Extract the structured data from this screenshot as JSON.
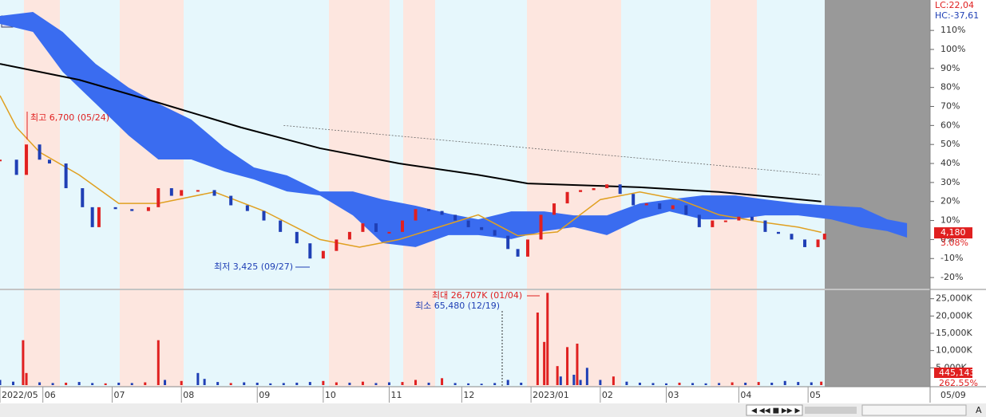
{
  "chart_data": {
    "type": "stock",
    "xlim": [
      0,
      282
    ],
    "xticks": [
      {
        "value": 0,
        "label": "2022/05"
      },
      {
        "value": 13,
        "label": "06"
      },
      {
        "value": 34,
        "label": "07"
      },
      {
        "value": 55,
        "label": "08"
      },
      {
        "value": 78,
        "label": "09"
      },
      {
        "value": 98,
        "label": "10"
      },
      {
        "value": 118,
        "label": "11"
      },
      {
        "value": 140,
        "label": "12"
      },
      {
        "value": 161,
        "label": "2023/01"
      },
      {
        "value": 182,
        "label": "02"
      },
      {
        "value": 202,
        "label": "03"
      },
      {
        "value": 224,
        "label": "04"
      },
      {
        "value": 245,
        "label": "05"
      }
    ],
    "current_date": "05/09",
    "legend_lc": "LC:22,04",
    "legend_hc": "HC:-37,61",
    "price_panel": {
      "ylim": [
        -25,
        126
      ],
      "yticks": [
        {
          "value": 110,
          "label": "110%"
        },
        {
          "value": 100,
          "label": "100%"
        },
        {
          "value": 90,
          "label": "90%"
        },
        {
          "value": 80,
          "label": "80%"
        },
        {
          "value": 70,
          "label": "70%"
        },
        {
          "value": 60,
          "label": "60%"
        },
        {
          "value": 50,
          "label": "50%"
        },
        {
          "value": 40,
          "label": "40%"
        },
        {
          "value": 30,
          "label": "30%"
        },
        {
          "value": 20,
          "label": "20%"
        },
        {
          "value": 10,
          "label": "10%"
        },
        {
          "value": 0,
          "label": "0%"
        },
        {
          "value": -10,
          "label": "-10%"
        },
        {
          "value": -20,
          "label": "-20%"
        }
      ],
      "close": {
        "up_color": "#e02020",
        "down_color": "#1f3fb5",
        "x": [
          0,
          5,
          8,
          12,
          15,
          20,
          25,
          28,
          30,
          35,
          40,
          45,
          48,
          52,
          55,
          60,
          65,
          70,
          75,
          80,
          85,
          90,
          94,
          98,
          102,
          106,
          110,
          114,
          118,
          122,
          126,
          130,
          134,
          138,
          142,
          146,
          150,
          154,
          157,
          160,
          164,
          168,
          172,
          176,
          180,
          184,
          188,
          192,
          196,
          200,
          204,
          208,
          212,
          216,
          220,
          224,
          228,
          232,
          236,
          240,
          244,
          248,
          250
        ],
        "values": [
          42,
          34,
          50,
          42,
          40,
          27,
          17,
          6.5,
          17,
          16,
          15,
          17,
          27,
          23,
          26,
          26,
          23,
          18,
          15,
          10,
          4,
          -2,
          -10,
          -6,
          0,
          4,
          8.5,
          4,
          4,
          10,
          16,
          15,
          13,
          10,
          6.5,
          5,
          2,
          -5,
          -9,
          0,
          13,
          19,
          25,
          26,
          27,
          29,
          24,
          18,
          19,
          16,
          18,
          13,
          6.5,
          10,
          10,
          12,
          10,
          4,
          3,
          0,
          -4,
          0,
          3.08
        ]
      },
      "ma_long": {
        "color": "#000000",
        "x": [
          0,
          24,
          48,
          73,
          97,
          121,
          145,
          160,
          194,
          218,
          249
        ],
        "values": [
          92.4,
          84,
          72,
          59,
          48,
          40,
          34,
          29.5,
          27.5,
          25,
          20
        ]
      },
      "trend_line": {
        "color": "#666666",
        "x": [
          86,
          249
        ],
        "values": [
          60,
          34
        ]
      },
      "ma_mid": {
        "color": "#e0a020",
        "x": [
          0,
          5,
          12,
          24,
          36,
          48,
          65,
          80,
          97,
          109,
          121,
          133,
          145,
          157,
          169,
          182,
          194,
          206,
          218,
          230,
          242,
          249
        ],
        "values": [
          75.7,
          59,
          46,
          34,
          19,
          19,
          25,
          15,
          0,
          -4,
          0,
          6.5,
          13,
          2,
          4,
          21,
          25,
          21,
          13,
          9.4,
          6.5,
          3.8
        ]
      },
      "cloud": {
        "color": "#3a6cf0",
        "x": [
          0,
          10,
          19,
          29,
          39,
          48,
          58,
          68,
          77,
          87,
          97,
          107,
          116,
          126,
          136,
          145,
          155,
          165,
          174,
          184,
          194,
          203,
          213,
          223,
          232,
          242,
          252,
          261,
          269,
          275
        ],
        "upper": [
          117.6,
          119.7,
          109.2,
          92.4,
          79.9,
          71.5,
          63.1,
          48.4,
          37.9,
          33.7,
          25.3,
          25.3,
          21.1,
          17.8,
          13.6,
          10.6,
          14.8,
          14.8,
          12.7,
          12.7,
          19,
          21.1,
          23.2,
          23.2,
          21.1,
          19,
          17.8,
          16.9,
          10.6,
          8.6
        ],
        "lower": [
          113.4,
          109.2,
          88.2,
          71.5,
          54.7,
          42.1,
          42.1,
          35.8,
          31.6,
          25.3,
          23.2,
          12.7,
          -1.9,
          -4,
          2.3,
          2.3,
          0.2,
          4.4,
          6.5,
          2.3,
          10.6,
          14.8,
          10.6,
          10.6,
          12.7,
          12.7,
          10.6,
          6.5,
          4.4,
          1
        ]
      },
      "last_price_label": "4,180",
      "last_change": {
        "value": 3.08,
        "label": "3.08%"
      },
      "annotation_high": "최고 6,700 (05/24)",
      "annotation_low": "최저 3,425 (09/27)"
    },
    "volume_panel": {
      "ylim": [
        0,
        27000
      ],
      "yticks": [
        {
          "value": 25000,
          "label": "25,000K"
        },
        {
          "value": 20000,
          "label": "20,000K"
        },
        {
          "value": 15000,
          "label": "15,000K"
        },
        {
          "value": 10000,
          "label": "10,000K"
        },
        {
          "value": 5000,
          "label": "5,000K"
        }
      ],
      "x": [
        0,
        4,
        7,
        8,
        12,
        16,
        20,
        24,
        28,
        32,
        36,
        40,
        44,
        48,
        50,
        55,
        60,
        62,
        66,
        70,
        74,
        78,
        82,
        86,
        90,
        94,
        98,
        102,
        106,
        110,
        114,
        118,
        122,
        126,
        130,
        134,
        138,
        142,
        146,
        150,
        154,
        158,
        163,
        165,
        166,
        169,
        170,
        172,
        174,
        175,
        176,
        178,
        182,
        186,
        190,
        194,
        198,
        202,
        206,
        210,
        214,
        218,
        222,
        226,
        230,
        234,
        238,
        242,
        246,
        249
      ],
      "values": [
        1500,
        1000,
        13000,
        3500,
        800,
        600,
        700,
        900,
        600,
        500,
        700,
        600,
        800,
        13000,
        1500,
        1200,
        3500,
        1800,
        900,
        600,
        800,
        700,
        500,
        600,
        700,
        900,
        1200,
        800,
        700,
        1000,
        600,
        800,
        900,
        1500,
        700,
        2000,
        600,
        500,
        400,
        600,
        1500,
        700,
        21000,
        12500,
        26707,
        5500,
        2500,
        11000,
        3000,
        12000,
        1500,
        5000,
        1500,
        2500,
        1000,
        700,
        600,
        500,
        700,
        600,
        500,
        600,
        800,
        700,
        900,
        700,
        1200,
        900,
        800,
        1000
      ],
      "colors": [
        "#1f3fb5",
        "#1f3fb5",
        "#e02020",
        "#e02020",
        "#1f3fb5",
        "#1f3fb5",
        "#e02020",
        "#1f3fb5",
        "#1f3fb5",
        "#e02020",
        "#1f3fb5",
        "#1f3fb5",
        "#e02020",
        "#e02020",
        "#1f3fb5",
        "#e02020",
        "#1f3fb5",
        "#1f3fb5",
        "#1f3fb5",
        "#e02020",
        "#1f3fb5",
        "#1f3fb5",
        "#1f3fb5",
        "#1f3fb5",
        "#1f3fb5",
        "#1f3fb5",
        "#e02020",
        "#e02020",
        "#1f3fb5",
        "#e02020",
        "#1f3fb5",
        "#1f3fb5",
        "#e02020",
        "#e02020",
        "#1f3fb5",
        "#e02020",
        "#1f3fb5",
        "#1f3fb5",
        "#1f3fb5",
        "#1f3fb5",
        "#1f3fb5",
        "#1f3fb5",
        "#e02020",
        "#e02020",
        "#e02020",
        "#e02020",
        "#1f3fb5",
        "#e02020",
        "#1f3fb5",
        "#e02020",
        "#1f3fb5",
        "#1f3fb5",
        "#1f3fb5",
        "#e02020",
        "#1f3fb5",
        "#1f3fb5",
        "#1f3fb5",
        "#1f3fb5",
        "#e02020",
        "#1f3fb5",
        "#1f3fb5",
        "#1f3fb5",
        "#e02020",
        "#1f3fb5",
        "#e02020",
        "#1f3fb5",
        "#1f3fb5",
        "#1f3fb5",
        "#1f3fb5",
        "#e02020"
      ],
      "last_volume_label": "445,143",
      "last_volume_change": {
        "value": 262.55,
        "label": "262.55%"
      },
      "annotation_max": "최대 26,707K (01/04)",
      "annotation_min": "최소 65,480 (12/19)"
    },
    "toolbar_font_button": "A"
  }
}
